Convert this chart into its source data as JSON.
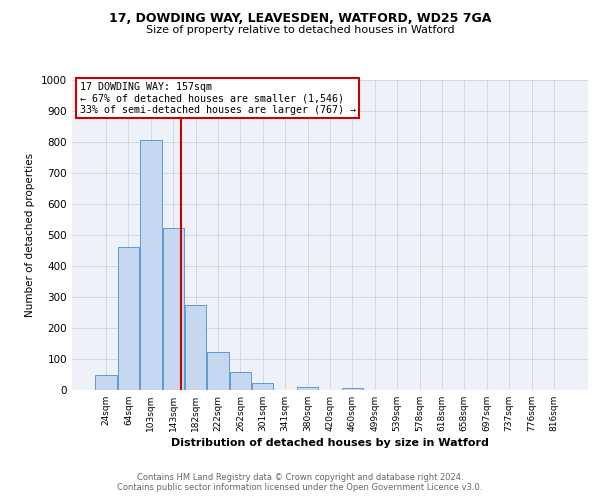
{
  "title1": "17, DOWDING WAY, LEAVESDEN, WATFORD, WD25 7GA",
  "title2": "Size of property relative to detached houses in Watford",
  "xlabel": "Distribution of detached houses by size in Watford",
  "ylabel": "Number of detached properties",
  "bar_labels": [
    "24sqm",
    "64sqm",
    "103sqm",
    "143sqm",
    "182sqm",
    "222sqm",
    "262sqm",
    "301sqm",
    "341sqm",
    "380sqm",
    "420sqm",
    "460sqm",
    "499sqm",
    "539sqm",
    "578sqm",
    "618sqm",
    "658sqm",
    "697sqm",
    "737sqm",
    "776sqm",
    "816sqm"
  ],
  "bar_values": [
    47,
    462,
    808,
    522,
    275,
    122,
    58,
    22,
    0,
    11,
    0,
    8,
    0,
    0,
    0,
    0,
    0,
    0,
    0,
    0,
    0
  ],
  "bar_color": "#c5d8f0",
  "bar_edge_color": "#5b9bd5",
  "grid_color": "#d0d8e8",
  "bg_color": "#eef2f8",
  "vline_color": "#cc0000",
  "annotation_title": "17 DOWDING WAY: 157sqm",
  "annotation_line1": "← 67% of detached houses are smaller (1,546)",
  "annotation_line2": "33% of semi-detached houses are larger (767) →",
  "annotation_box_color": "#cc0000",
  "footer1": "Contains HM Land Registry data © Crown copyright and database right 2024.",
  "footer2": "Contains public sector information licensed under the Open Government Licence v3.0.",
  "ylim": [
    0,
    1000
  ],
  "yticks": [
    0,
    100,
    200,
    300,
    400,
    500,
    600,
    700,
    800,
    900,
    1000
  ]
}
